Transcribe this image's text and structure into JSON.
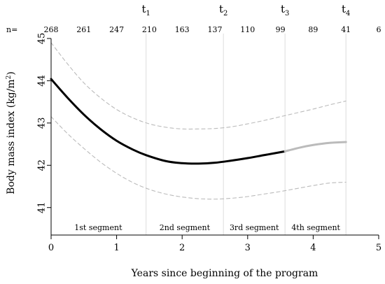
{
  "chart_data": {
    "type": "line",
    "xlabel": "Years since beginning of the program",
    "ylabel_base": "Body mass index (kg/m",
    "ylabel_sup": "2",
    "ylabel_tail": ")",
    "xlim": [
      0,
      5
    ],
    "ylim": [
      40.35,
      45.0
    ],
    "x_ticks": [
      0,
      1,
      2,
      3,
      4,
      5
    ],
    "y_ticks": [
      41,
      42,
      43,
      44,
      45
    ],
    "n_label": "n=",
    "n_values": [
      {
        "x": 0.0,
        "n": "268"
      },
      {
        "x": 0.5,
        "n": "261"
      },
      {
        "x": 1.0,
        "n": "247"
      },
      {
        "x": 1.5,
        "n": "210"
      },
      {
        "x": 2.0,
        "n": "163"
      },
      {
        "x": 2.5,
        "n": "137"
      },
      {
        "x": 3.0,
        "n": "110"
      },
      {
        "x": 3.5,
        "n": "99"
      },
      {
        "x": 4.0,
        "n": "89"
      },
      {
        "x": 4.5,
        "n": "41"
      },
      {
        "x": 5.0,
        "n": "6"
      }
    ],
    "breakpoints": [
      {
        "x": 1.45,
        "label": "t",
        "sub": "1"
      },
      {
        "x": 2.63,
        "label": "t",
        "sub": "2"
      },
      {
        "x": 3.57,
        "label": "t",
        "sub": "3"
      },
      {
        "x": 4.5,
        "label": "t",
        "sub": "4"
      }
    ],
    "segments": [
      {
        "label": "1st segment",
        "x": 0.72
      },
      {
        "label": "2nd segment",
        "x": 2.04
      },
      {
        "label": "3rd segment",
        "x": 3.1
      },
      {
        "label": "4th segment",
        "x": 4.04
      }
    ],
    "series": [
      {
        "role": "estimate",
        "color": "#000000",
        "points": [
          [
            0,
            44.04
          ],
          [
            0.25,
            43.6
          ],
          [
            0.5,
            43.2
          ],
          [
            0.75,
            42.86
          ],
          [
            1.0,
            42.58
          ],
          [
            1.25,
            42.37
          ],
          [
            1.45,
            42.24
          ],
          [
            1.75,
            42.1
          ],
          [
            2.0,
            42.05
          ],
          [
            2.25,
            42.04
          ],
          [
            2.5,
            42.06
          ],
          [
            2.75,
            42.11
          ],
          [
            3.0,
            42.17
          ],
          [
            3.25,
            42.24
          ],
          [
            3.57,
            42.33
          ]
        ]
      },
      {
        "role": "estimate-extension",
        "color": "#bbbbbb",
        "points": [
          [
            3.57,
            42.33
          ],
          [
            3.8,
            42.42
          ],
          [
            4.0,
            42.48
          ],
          [
            4.25,
            42.53
          ],
          [
            4.5,
            42.55
          ]
        ]
      },
      {
        "role": "upper-band",
        "color": "#bbbbbb",
        "dashed": true,
        "points": [
          [
            0,
            44.9
          ],
          [
            0.25,
            44.4
          ],
          [
            0.5,
            43.95
          ],
          [
            0.75,
            43.6
          ],
          [
            1.0,
            43.32
          ],
          [
            1.25,
            43.12
          ],
          [
            1.5,
            42.98
          ],
          [
            1.75,
            42.9
          ],
          [
            2.0,
            42.86
          ],
          [
            2.25,
            42.86
          ],
          [
            2.5,
            42.87
          ],
          [
            2.75,
            42.91
          ],
          [
            3.0,
            42.98
          ],
          [
            3.25,
            43.06
          ],
          [
            3.5,
            43.15
          ],
          [
            3.75,
            43.24
          ],
          [
            4.0,
            43.33
          ],
          [
            4.25,
            43.43
          ],
          [
            4.5,
            43.52
          ]
        ]
      },
      {
        "role": "lower-band",
        "color": "#bbbbbb",
        "dashed": true,
        "points": [
          [
            0,
            43.15
          ],
          [
            0.25,
            42.75
          ],
          [
            0.5,
            42.4
          ],
          [
            0.75,
            42.08
          ],
          [
            1.0,
            41.81
          ],
          [
            1.25,
            41.59
          ],
          [
            1.5,
            41.43
          ],
          [
            1.75,
            41.32
          ],
          [
            2.0,
            41.25
          ],
          [
            2.25,
            41.21
          ],
          [
            2.5,
            41.2
          ],
          [
            2.75,
            41.22
          ],
          [
            3.0,
            41.26
          ],
          [
            3.25,
            41.32
          ],
          [
            3.5,
            41.38
          ],
          [
            3.75,
            41.45
          ],
          [
            4.0,
            41.52
          ],
          [
            4.25,
            41.58
          ],
          [
            4.5,
            41.6
          ]
        ]
      }
    ]
  }
}
